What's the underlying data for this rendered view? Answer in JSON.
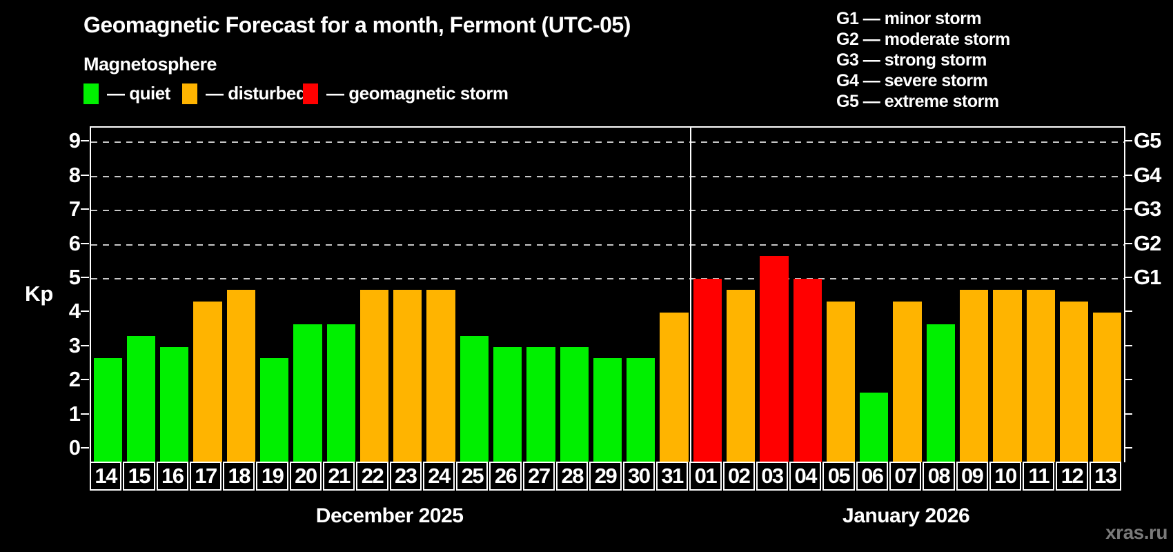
{
  "header": {
    "title": "Geomagnetic Forecast for a month, Fermont (UTC-05)",
    "subtitle": "Magnetosphere"
  },
  "legend": {
    "items": [
      {
        "label": "— quiet",
        "status": "quiet",
        "color": "#00f000"
      },
      {
        "label": "— disturbed",
        "status": "disturbed",
        "color": "#ffb400"
      },
      {
        "label": "— geomagnetic storm",
        "status": "storm",
        "color": "#ff0000"
      }
    ]
  },
  "storm_scale_legend": {
    "items": [
      "G1 — minor storm",
      "G2 — moderate storm",
      "G3 — strong storm",
      "G4 — severe storm",
      "G5 — extreme storm"
    ]
  },
  "watermark": "xras.ru",
  "chart_data": {
    "type": "bar",
    "title": "Geomagnetic Forecast for a month, Fermont (UTC-05)",
    "subtitle": "Magnetosphere",
    "ylabel": "Kp",
    "ylim": [
      0,
      9.4
    ],
    "yticks": [
      0,
      1,
      2,
      3,
      4,
      5,
      6,
      7,
      8,
      9
    ],
    "grid_values": [
      5,
      6,
      7,
      8,
      9
    ],
    "grid_on": true,
    "legend_position": "top-left",
    "right_axis_labels": [
      {
        "value": 5,
        "label": "G1"
      },
      {
        "value": 6,
        "label": "G2"
      },
      {
        "value": 7,
        "label": "G3"
      },
      {
        "value": 8,
        "label": "G4"
      },
      {
        "value": 9,
        "label": "G5"
      }
    ],
    "status_colors": {
      "quiet": "#00f000",
      "disturbed": "#ffb400",
      "storm": "#ff0000"
    },
    "months": [
      {
        "label": "December 2025",
        "days": [
          {
            "day": "14",
            "kp": 2.67,
            "status": "quiet"
          },
          {
            "day": "15",
            "kp": 3.33,
            "status": "quiet"
          },
          {
            "day": "16",
            "kp": 3.0,
            "status": "quiet"
          },
          {
            "day": "17",
            "kp": 4.33,
            "status": "disturbed"
          },
          {
            "day": "18",
            "kp": 4.67,
            "status": "disturbed"
          },
          {
            "day": "19",
            "kp": 2.67,
            "status": "quiet"
          },
          {
            "day": "20",
            "kp": 3.67,
            "status": "quiet"
          },
          {
            "day": "21",
            "kp": 3.67,
            "status": "quiet"
          },
          {
            "day": "22",
            "kp": 4.67,
            "status": "disturbed"
          },
          {
            "day": "23",
            "kp": 4.67,
            "status": "disturbed"
          },
          {
            "day": "24",
            "kp": 4.67,
            "status": "disturbed"
          },
          {
            "day": "25",
            "kp": 3.33,
            "status": "quiet"
          },
          {
            "day": "26",
            "kp": 3.0,
            "status": "quiet"
          },
          {
            "day": "27",
            "kp": 3.0,
            "status": "quiet"
          },
          {
            "day": "28",
            "kp": 3.0,
            "status": "quiet"
          },
          {
            "day": "29",
            "kp": 2.67,
            "status": "quiet"
          },
          {
            "day": "30",
            "kp": 2.67,
            "status": "quiet"
          },
          {
            "day": "31",
            "kp": 4.0,
            "status": "disturbed"
          }
        ]
      },
      {
        "label": "January 2026",
        "days": [
          {
            "day": "01",
            "kp": 5.0,
            "status": "storm"
          },
          {
            "day": "02",
            "kp": 4.67,
            "status": "disturbed"
          },
          {
            "day": "03",
            "kp": 5.67,
            "status": "storm"
          },
          {
            "day": "04",
            "kp": 5.0,
            "status": "storm"
          },
          {
            "day": "05",
            "kp": 4.33,
            "status": "disturbed"
          },
          {
            "day": "06",
            "kp": 1.67,
            "status": "quiet"
          },
          {
            "day": "07",
            "kp": 4.33,
            "status": "disturbed"
          },
          {
            "day": "08",
            "kp": 3.67,
            "status": "quiet"
          },
          {
            "day": "09",
            "kp": 4.67,
            "status": "disturbed"
          },
          {
            "day": "10",
            "kp": 4.67,
            "status": "disturbed"
          },
          {
            "day": "11",
            "kp": 4.67,
            "status": "disturbed"
          },
          {
            "day": "12",
            "kp": 4.33,
            "status": "disturbed"
          },
          {
            "day": "13",
            "kp": 4.0,
            "status": "disturbed"
          }
        ]
      }
    ]
  }
}
